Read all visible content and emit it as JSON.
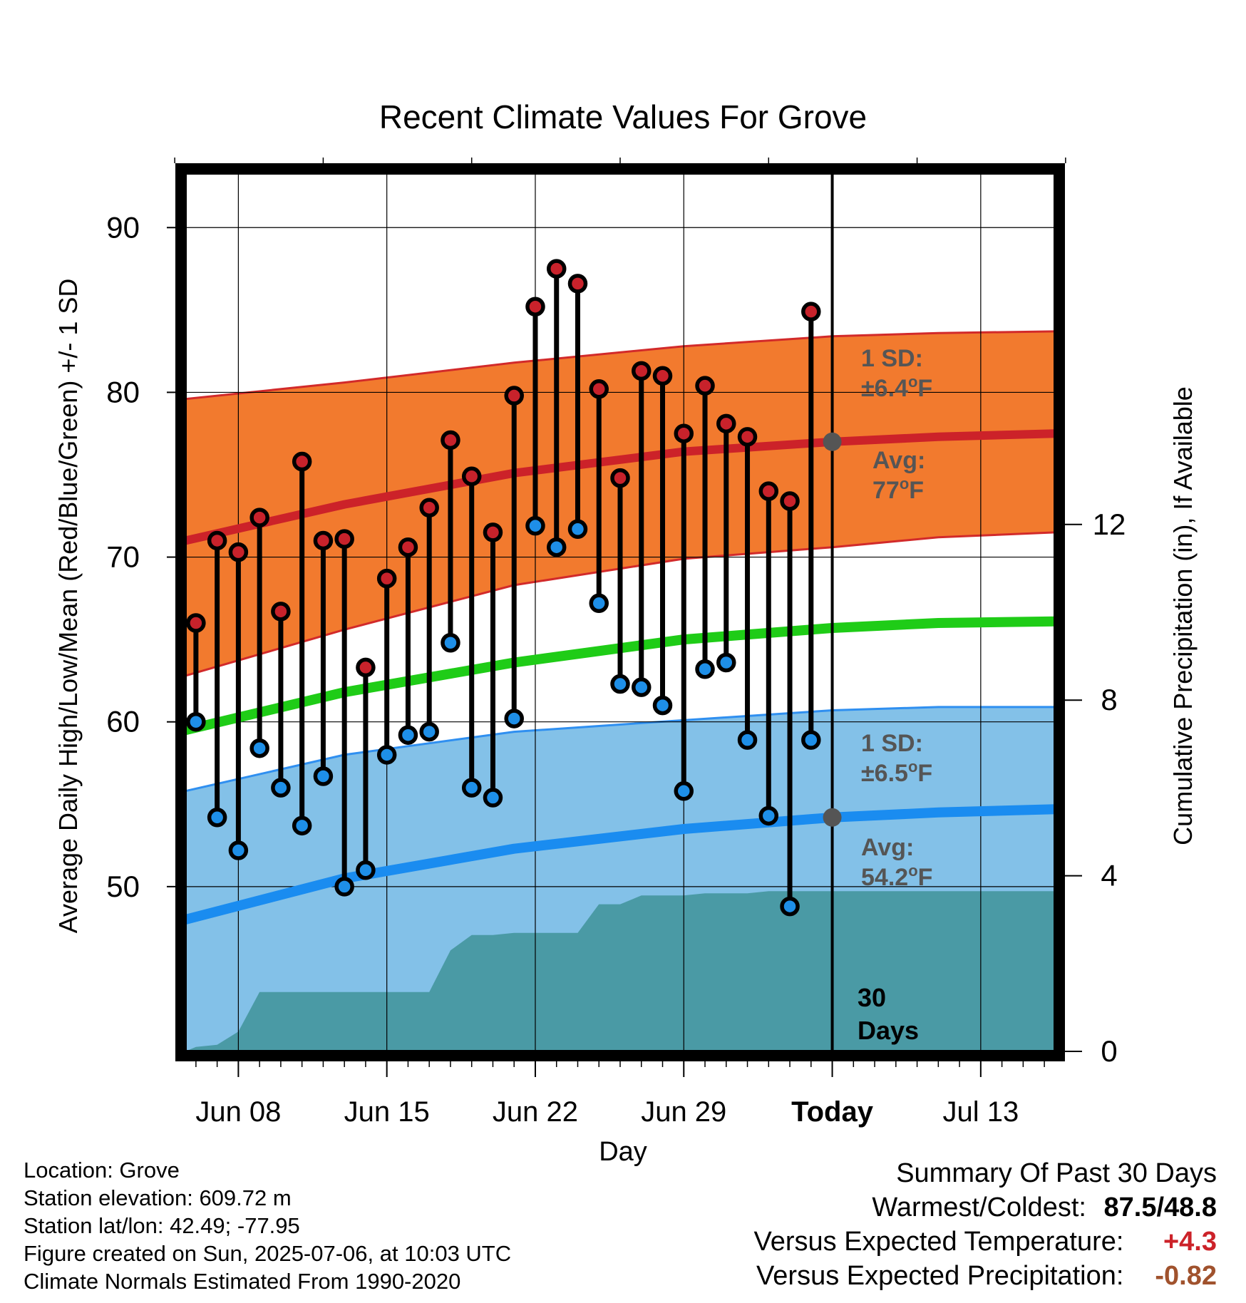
{
  "chart_data": {
    "type": "line",
    "title": "Recent Climate Values For Grove",
    "xlabel": "Day",
    "ylabel": "Average Daily High/Low/Mean (Red/Blue/Green) +/- 1 SD",
    "y2label": "Cumulative Precipitation (in), If Available",
    "ylim": [
      40,
      93.3
    ],
    "y2lim": [
      0,
      20
    ],
    "xlim": [
      0.5,
      41.5
    ],
    "yticks": [
      50,
      60,
      70,
      80,
      90
    ],
    "y2ticks": [
      0,
      4,
      8,
      12
    ],
    "xticks": [
      {
        "x": 3,
        "label": "Jun 08"
      },
      {
        "x": 10,
        "label": "Jun 15"
      },
      {
        "x": 17,
        "label": "Jun 22"
      },
      {
        "x": 24,
        "label": "Jun 29"
      },
      {
        "x": 31,
        "label": "Today"
      },
      {
        "x": 38,
        "label": "Jul 13"
      }
    ],
    "grid": true,
    "today_x": 31,
    "today_label": "30\nDays",
    "x_note": "x = day number counted from Jun 05 (Jun 06 = 1)",
    "observed": {
      "x": [
        1,
        2,
        3,
        4,
        5,
        6,
        7,
        8,
        9,
        10,
        11,
        12,
        13,
        14,
        15,
        16,
        17,
        18,
        19,
        20,
        21,
        22,
        23,
        24,
        25,
        26,
        27,
        28,
        29,
        30
      ],
      "high": [
        66.0,
        71.0,
        70.3,
        72.4,
        66.7,
        75.8,
        71.0,
        71.1,
        63.3,
        68.7,
        70.6,
        73.0,
        77.1,
        74.9,
        71.5,
        79.8,
        85.2,
        87.5,
        86.6,
        80.2,
        74.8,
        81.3,
        81.0,
        77.5,
        80.4,
        78.1,
        77.3,
        74.0,
        73.4,
        84.9
      ],
      "low": [
        60.0,
        54.2,
        52.2,
        58.4,
        56.0,
        53.7,
        56.7,
        50.0,
        51.0,
        58.0,
        59.2,
        59.4,
        64.8,
        56.0,
        55.4,
        60.2,
        71.9,
        70.6,
        71.7,
        67.2,
        62.3,
        62.1,
        61.0,
        55.8,
        63.2,
        63.6,
        58.9,
        54.3,
        48.8,
        58.9
      ]
    },
    "normals": {
      "x": [
        0.5,
        8,
        16,
        24,
        31,
        36,
        41.5
      ],
      "high_mean": [
        71.0,
        73.2,
        75.1,
        76.4,
        77.0,
        77.3,
        77.5
      ],
      "high_upper": [
        79.6,
        80.6,
        81.8,
        82.8,
        83.4,
        83.6,
        83.7
      ],
      "high_lower": [
        62.8,
        65.6,
        68.3,
        69.9,
        70.6,
        71.2,
        71.5
      ],
      "mean": [
        59.5,
        61.8,
        63.6,
        65.0,
        65.7,
        66.0,
        66.1
      ],
      "low_mean": [
        48.0,
        50.5,
        52.3,
        53.5,
        54.2,
        54.5,
        54.7
      ],
      "low_upper": [
        55.8,
        58.0,
        59.4,
        60.1,
        60.7,
        60.9,
        60.9
      ],
      "low_lower": [
        39.8,
        41.0,
        44.3,
        46.5,
        47.7,
        48.2,
        48.6
      ]
    },
    "precipitation": {
      "x": [
        0.5,
        1,
        2,
        3,
        4,
        5,
        6,
        7,
        8,
        9,
        10,
        11,
        12,
        13,
        14,
        15,
        16,
        17,
        18,
        19,
        20,
        21,
        22,
        23,
        24,
        25,
        26,
        27,
        28,
        29,
        30,
        31,
        41.5
      ],
      "y": [
        0.0,
        0.1,
        0.15,
        0.45,
        1.35,
        1.35,
        1.35,
        1.35,
        1.35,
        1.35,
        1.35,
        1.35,
        1.35,
        2.3,
        2.65,
        2.65,
        2.7,
        2.7,
        2.7,
        2.7,
        3.35,
        3.35,
        3.55,
        3.55,
        3.55,
        3.6,
        3.6,
        3.6,
        3.65,
        3.65,
        3.65,
        3.65,
        3.65
      ]
    },
    "annotations": {
      "high_sd": {
        "line1": "1 SD:",
        "line2": "±6.4",
        "unit": "F"
      },
      "high_avg": {
        "line1": "Avg:",
        "line2": "77",
        "unit": "F",
        "value": 77.0
      },
      "low_sd": {
        "line1": "1 SD:",
        "line2": "±6.5",
        "unit": "F"
      },
      "low_avg": {
        "line1": "Avg:",
        "line2": "54.2",
        "unit": "F",
        "value": 54.2
      },
      "degree": "o"
    },
    "colors": {
      "high_point": "#c8222b",
      "low_point": "#1e8fe8",
      "orange_band": "#f27a2e",
      "orange_edge": "#d22a2a",
      "red_line": "#cc2229",
      "blue_band": "#83c1e8",
      "blue_edge": "#2f8ff0",
      "blue_line": "#1a8cf0",
      "green_line": "#1fcc17",
      "precip": "#4a9aa5",
      "annotation": "#555555"
    }
  },
  "footer": {
    "location": "Location: Grove",
    "elevation": "Station elevation: 609.72 m",
    "latlon": "Station lat/lon: 42.49; -77.95",
    "created": "Figure created on Sun, 2025-07-06, at 10:03 UTC",
    "normals": "Climate Normals Estimated From 1990-2020"
  },
  "summary": {
    "title": "Summary Of Past 30 Days",
    "warmest_label": "Warmest/Coldest:",
    "warmest_value": "87.5/48.8",
    "temp_label": "Versus Expected Temperature:",
    "temp_value": "+4.3",
    "temp_color": "#cc2229",
    "precip_label": "Versus Expected Precipitation:",
    "precip_value": "-0.82",
    "precip_color": "#a0522d"
  }
}
